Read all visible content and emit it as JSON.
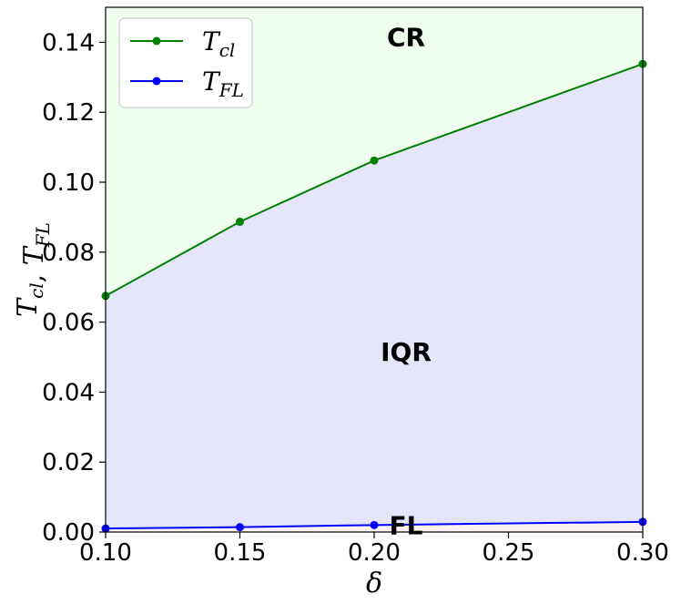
{
  "chart_data": {
    "type": "line",
    "title": "",
    "xlabel": "δ",
    "ylabel": {
      "parts": [
        {
          "base": "T",
          "sub": "cl"
        },
        {
          "base": "T",
          "sub": "FL"
        }
      ],
      "separator": ", "
    },
    "xlim": [
      0.1,
      0.3
    ],
    "ylim": [
      0.0,
      0.15
    ],
    "xticks": [
      "0.10",
      "0.15",
      "0.20",
      "0.25",
      "0.30"
    ],
    "yticks": [
      "0.00",
      "0.02",
      "0.04",
      "0.06",
      "0.08",
      "0.10",
      "0.12",
      "0.14"
    ],
    "grid": false,
    "legend_placement": "top-left",
    "series": [
      {
        "key": "cl",
        "base": "T",
        "sub": "cl",
        "color": "#008000",
        "x": [
          0.1,
          0.15,
          0.2,
          0.3
        ],
        "y": [
          0.0675,
          0.0887,
          0.1062,
          0.1338
        ]
      },
      {
        "key": "fl",
        "base": "T",
        "sub": "FL",
        "color": "#0000ff",
        "x": [
          0.1,
          0.15,
          0.2,
          0.3
        ],
        "y": [
          0.001,
          0.0014,
          0.002,
          0.0029
        ]
      }
    ],
    "regions": [
      {
        "label": "CR",
        "color": "#effeef",
        "anchor_x": 0.2,
        "anchor_y": 0.1415
      },
      {
        "label": "IQR",
        "color": "#e4e5f9",
        "anchor_x": 0.2,
        "anchor_y": 0.0515
      },
      {
        "label": "FL",
        "color": "#fcf2f2",
        "anchor_x": 0.2,
        "anchor_y": 0.002
      }
    ]
  }
}
